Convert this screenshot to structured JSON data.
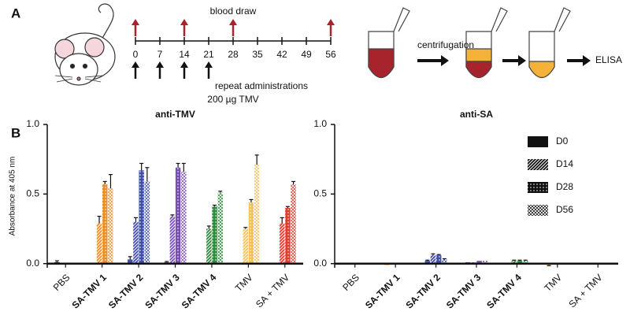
{
  "panel_labels": [
    "A",
    "B"
  ],
  "timeline": {
    "days": [
      0,
      7,
      14,
      21,
      28,
      35,
      42,
      49,
      56
    ],
    "blood_draw_days": [
      0,
      14,
      28,
      56
    ],
    "administration_days": [
      0,
      7,
      14,
      21
    ],
    "blood_draw_label": "blood draw",
    "administration_label": [
      "repeat administrations",
      "200 µg TMV"
    ],
    "blood_draw_color": "#a8242c"
  },
  "workflow": {
    "step": "centrifugation",
    "result": "ELISA"
  },
  "chart_data": [
    {
      "type": "bar",
      "title": "anti-TMV",
      "y_label": "Absorbance at 405 nm",
      "categories": [
        "PBS",
        "SA-TMV 1",
        "SA-TMV 2",
        "SA-TMV 3",
        "SA-TMV 4",
        "TMV",
        "SA + TMV"
      ],
      "category_bold": [
        false,
        true,
        true,
        true,
        true,
        false,
        false
      ],
      "category_colors": [
        "#222222",
        "#f28c28",
        "#3f4fa8",
        "#7a4fb5",
        "#2e8b3a",
        "#f5c15a",
        "#e53a2a"
      ],
      "series": [
        {
          "name": "D0",
          "pattern": "solid",
          "values": [
            0.01,
            0.0,
            0.03,
            0.01,
            0.0,
            0.0,
            0.0
          ],
          "errors": [
            0.01,
            0.0,
            0.02,
            0.005,
            0.0,
            0.0,
            0.0
          ]
        },
        {
          "name": "D14",
          "pattern": "stripes",
          "values": [
            0.0,
            0.29,
            0.3,
            0.34,
            0.25,
            0.25,
            0.29
          ],
          "errors": [
            0.0,
            0.05,
            0.03,
            0.01,
            0.02,
            0.01,
            0.04
          ]
        },
        {
          "name": "D28",
          "pattern": "dots",
          "values": [
            0.0,
            0.57,
            0.67,
            0.69,
            0.41,
            0.44,
            0.4
          ],
          "errors": [
            0.0,
            0.02,
            0.05,
            0.03,
            0.01,
            0.02,
            0.01
          ]
        },
        {
          "name": "D56",
          "pattern": "cross",
          "values": [
            0.0,
            0.54,
            0.59,
            0.66,
            0.51,
            0.71,
            0.57
          ],
          "errors": [
            0.0,
            0.1,
            0.1,
            0.06,
            0.01,
            0.07,
            0.02
          ]
        }
      ],
      "ylim": [
        -0.03,
        1.0
      ],
      "yticks": [
        {
          "value": 0,
          "label": "0.0"
        },
        {
          "value": 0.5,
          "label": "0.5"
        },
        {
          "value": 1,
          "label": "1.0"
        }
      ]
    },
    {
      "type": "bar",
      "title": "anti-SA",
      "categories": [
        "PBS",
        "SA-TMV 1",
        "SA-TMV 2",
        "SA-TMV 3",
        "SA-TMV 4",
        "TMV",
        "SA + TMV"
      ],
      "category_bold": [
        false,
        true,
        true,
        true,
        true,
        false,
        false
      ],
      "category_colors": [
        "#222222",
        "#f28c28",
        "#3f4fa8",
        "#7a4fb5",
        "#2e8b3a",
        "#f5c15a",
        "#e53a2a"
      ],
      "series": [
        {
          "name": "D0",
          "pattern": "solid",
          "values": [
            0.0,
            -0.01,
            0.02,
            0.01,
            0.0,
            -0.01,
            0.0
          ],
          "errors": [
            0.0,
            0.0,
            0.005,
            0.0,
            0.0,
            0.005,
            0.0
          ]
        },
        {
          "name": "D14",
          "pattern": "stripes",
          "values": [
            0.0,
            0.0,
            0.06,
            0.01,
            0.02,
            0.0,
            0.0
          ],
          "errors": [
            0.0,
            0.0,
            0.01,
            0.0,
            0.005,
            0.0,
            0.0
          ]
        },
        {
          "name": "D28",
          "pattern": "dots",
          "values": [
            0.0,
            0.0,
            0.06,
            0.02,
            0.02,
            0.0,
            0.0
          ],
          "errors": [
            0.0,
            0.0,
            0.005,
            0.0,
            0.005,
            0.0,
            0.0
          ]
        },
        {
          "name": "D56",
          "pattern": "cross",
          "values": [
            0.0,
            0.0,
            0.03,
            0.02,
            0.02,
            0.0,
            0.0
          ],
          "errors": [
            0.0,
            0.0,
            0.005,
            0.0,
            0.005,
            0.0,
            0.0
          ]
        }
      ],
      "ylim": [
        -0.03,
        1.0
      ],
      "yticks": [
        {
          "value": 0,
          "label": "0.0"
        },
        {
          "value": 0.5,
          "label": "0.5"
        },
        {
          "value": 1,
          "label": "1.0"
        }
      ],
      "legend": "upper right",
      "legend_color": "#111111"
    }
  ]
}
